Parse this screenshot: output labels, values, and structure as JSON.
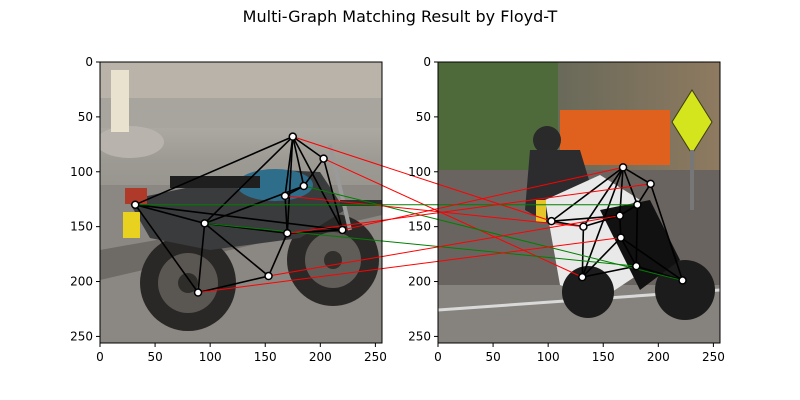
{
  "figure": {
    "title": "Multi-Graph Matching Result by Floyd-T"
  },
  "chart_data": {
    "type": "scatter",
    "title": "Multi-Graph Matching Result by Floyd-T",
    "xlim": [
      0,
      256
    ],
    "ylim": [
      256,
      0
    ],
    "x_ticks": [
      0,
      50,
      100,
      150,
      200,
      250
    ],
    "y_ticks": [
      0,
      50,
      100,
      150,
      200,
      250
    ],
    "grid": false,
    "colors": {
      "graph_edge": "#000000",
      "correct_match": "#008000",
      "wrong_match": "#ff0000",
      "keypoint_fill": "#ffffff",
      "keypoint_stroke": "#000000"
    },
    "images": [
      {
        "name": "left motorcycle image",
        "keypoints": [
          {
            "x": 175,
            "y": 68
          },
          {
            "x": 203,
            "y": 88
          },
          {
            "x": 185,
            "y": 113
          },
          {
            "x": 168,
            "y": 122
          },
          {
            "x": 32,
            "y": 130
          },
          {
            "x": 95,
            "y": 147
          },
          {
            "x": 170,
            "y": 156
          },
          {
            "x": 220,
            "y": 153
          },
          {
            "x": 153,
            "y": 195
          },
          {
            "x": 89,
            "y": 210
          }
        ],
        "edges": [
          [
            0,
            1
          ],
          [
            0,
            2
          ],
          [
            0,
            3
          ],
          [
            0,
            4
          ],
          [
            0,
            5
          ],
          [
            0,
            6
          ],
          [
            0,
            7
          ],
          [
            1,
            2
          ],
          [
            1,
            7
          ],
          [
            2,
            3
          ],
          [
            2,
            5
          ],
          [
            3,
            6
          ],
          [
            4,
            5
          ],
          [
            4,
            7
          ],
          [
            4,
            9
          ],
          [
            5,
            6
          ],
          [
            5,
            8
          ],
          [
            5,
            9
          ],
          [
            6,
            7
          ],
          [
            6,
            8
          ],
          [
            8,
            9
          ]
        ]
      },
      {
        "name": "right motorcycle image",
        "keypoints": [
          {
            "x": 168,
            "y": 96
          },
          {
            "x": 193,
            "y": 111
          },
          {
            "x": 181,
            "y": 130
          },
          {
            "x": 165,
            "y": 140
          },
          {
            "x": 103,
            "y": 145
          },
          {
            "x": 132,
            "y": 150
          },
          {
            "x": 166,
            "y": 160
          },
          {
            "x": 180,
            "y": 186
          },
          {
            "x": 131,
            "y": 196
          },
          {
            "x": 222,
            "y": 199
          }
        ],
        "edges": [
          [
            0,
            1
          ],
          [
            0,
            2
          ],
          [
            0,
            3
          ],
          [
            0,
            4
          ],
          [
            0,
            5
          ],
          [
            0,
            8
          ],
          [
            1,
            2
          ],
          [
            1,
            9
          ],
          [
            2,
            3
          ],
          [
            2,
            7
          ],
          [
            3,
            4
          ],
          [
            3,
            5
          ],
          [
            3,
            6
          ],
          [
            4,
            5
          ],
          [
            5,
            8
          ],
          [
            6,
            7
          ],
          [
            6,
            8
          ],
          [
            6,
            9
          ],
          [
            7,
            8
          ],
          [
            7,
            9
          ]
        ]
      }
    ],
    "matches": [
      {
        "left": 0,
        "right": 4,
        "correct": false
      },
      {
        "left": 1,
        "right": 8,
        "correct": false
      },
      {
        "left": 2,
        "right": 9,
        "correct": true
      },
      {
        "left": 3,
        "right": 5,
        "correct": false
      },
      {
        "left": 4,
        "right": 2,
        "correct": true
      },
      {
        "left": 5,
        "right": 7,
        "correct": true
      },
      {
        "left": 6,
        "right": 1,
        "correct": false
      },
      {
        "left": 7,
        "right": 0,
        "correct": false
      },
      {
        "left": 8,
        "right": 3,
        "correct": false
      },
      {
        "left": 9,
        "right": 6,
        "correct": false
      }
    ]
  }
}
